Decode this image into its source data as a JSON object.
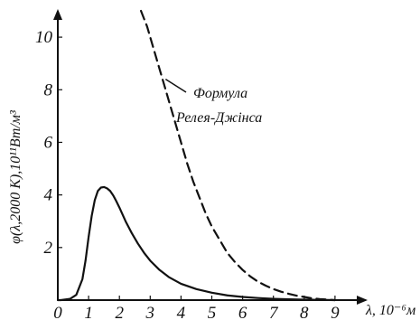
{
  "chart_data": {
    "type": "line",
    "xlabel": "λ, 10⁻⁶м",
    "ylabel": "φ(λ,2000 К),10¹¹Вт/м³",
    "xlim": [
      0,
      10
    ],
    "ylim": [
      0,
      11
    ],
    "x_ticks": [
      "0",
      "1",
      "2",
      "3",
      "4",
      "5",
      "6",
      "7",
      "8",
      "9"
    ],
    "y_ticks": [
      "2",
      "4",
      "6",
      "8",
      "10"
    ],
    "grid": false,
    "annotations": [
      {
        "text_lines": [
          "Формула",
          "Релея-Джінса"
        ],
        "target": {
          "x": 3.5,
          "y": 8.4
        }
      }
    ],
    "series": [
      {
        "style": "solid",
        "color": "#111111",
        "x": [
          0,
          0.1,
          0.4,
          0.6,
          0.8,
          0.9,
          1.0,
          1.1,
          1.2,
          1.3,
          1.4,
          1.5,
          1.6,
          1.7,
          1.8,
          1.9,
          2.0,
          2.2,
          2.4,
          2.6,
          2.8,
          3.0,
          3.3,
          3.6,
          4.0,
          4.5,
          5.0,
          5.5,
          6.0,
          6.5,
          7.0,
          7.5,
          8.0,
          8.5,
          9.0
        ],
        "y": [
          0.0,
          0.0,
          0.05,
          0.2,
          0.8,
          1.5,
          2.4,
          3.2,
          3.8,
          4.15,
          4.28,
          4.3,
          4.25,
          4.15,
          3.98,
          3.76,
          3.52,
          3.0,
          2.55,
          2.15,
          1.8,
          1.5,
          1.15,
          0.88,
          0.62,
          0.42,
          0.28,
          0.18,
          0.12,
          0.08,
          0.05,
          0.03,
          0.02,
          0.01,
          0.0
        ]
      },
      {
        "style": "dashed",
        "color": "#111111",
        "x": [
          2.7,
          2.8,
          2.9,
          3.0,
          3.1,
          3.2,
          3.3,
          3.4,
          3.5,
          3.6,
          3.7,
          3.8,
          4.0,
          4.2,
          4.4,
          4.6,
          4.8,
          5.0,
          5.25,
          5.5,
          5.75,
          6.0,
          6.25,
          6.5,
          6.75,
          7.0,
          7.25,
          7.5,
          7.75,
          8.0,
          8.25,
          8.5,
          8.75,
          9.0
        ],
        "y": [
          11.0,
          10.7,
          10.4,
          10.0,
          9.6,
          9.2,
          8.8,
          8.4,
          8.0,
          7.6,
          7.2,
          6.8,
          6.0,
          5.2,
          4.5,
          3.9,
          3.3,
          2.8,
          2.3,
          1.8,
          1.45,
          1.15,
          0.9,
          0.7,
          0.55,
          0.42,
          0.32,
          0.24,
          0.17,
          0.12,
          0.07,
          0.04,
          0.02,
          0.0
        ]
      }
    ]
  }
}
